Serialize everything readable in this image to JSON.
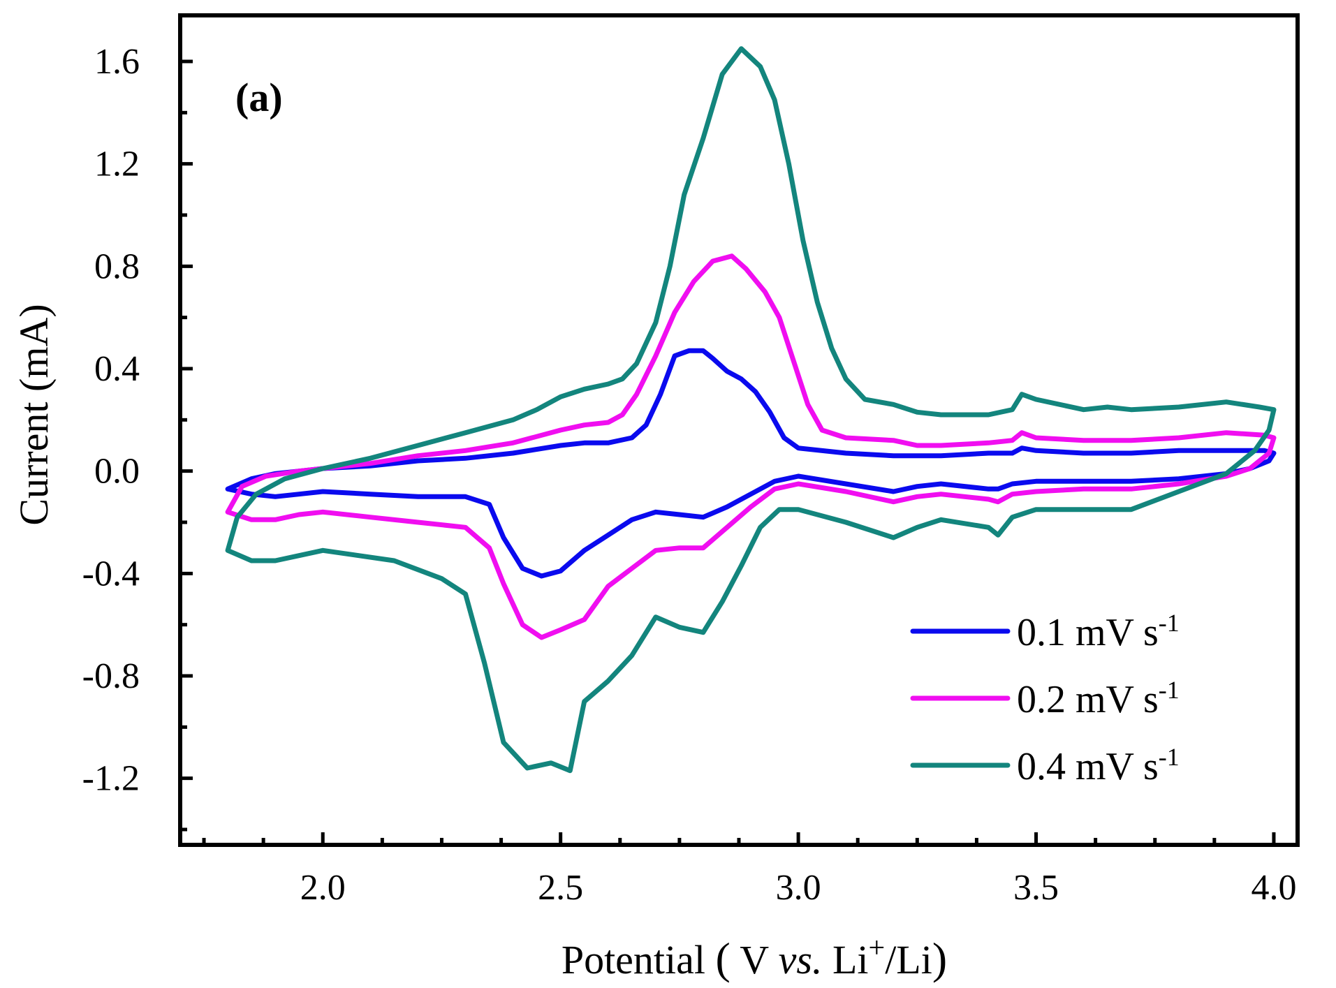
{
  "chart_data": {
    "type": "line",
    "panel_label": "(a)",
    "xlabel": {
      "main": "Potential",
      "open": "(",
      "v": "V",
      "vs": "vs.",
      "li": "Li",
      "sup": "+",
      "rest": "/Li",
      "close": ")"
    },
    "ylabel": "Current (mA)",
    "xlim": [
      1.7,
      4.05
    ],
    "ylim": [
      -1.46,
      1.78
    ],
    "xticks": [
      2.0,
      2.5,
      3.0,
      3.5,
      4.0
    ],
    "xtick_labels": [
      "2.0",
      "2.5",
      "3.0",
      "3.5",
      "4.0"
    ],
    "yticks": [
      -1.2,
      -0.8,
      -0.4,
      0.0,
      0.4,
      0.8,
      1.2,
      1.6
    ],
    "ytick_labels": [
      "-1.2",
      "-0.8",
      "-0.4",
      "0.0",
      "0.4",
      "0.8",
      "1.2",
      "1.6"
    ],
    "grid": false,
    "legend_position": "bottom-right",
    "series": [
      {
        "name": "0.1 mV s",
        "name_sup": "-1",
        "color": "#0a0aee",
        "points": [
          [
            1.8,
            -0.07
          ],
          [
            1.85,
            -0.03
          ],
          [
            1.9,
            -0.01
          ],
          [
            1.95,
            0
          ],
          [
            2.0,
            0.01
          ],
          [
            2.1,
            0.02
          ],
          [
            2.2,
            0.04
          ],
          [
            2.3,
            0.05
          ],
          [
            2.4,
            0.07
          ],
          [
            2.5,
            0.1
          ],
          [
            2.55,
            0.11
          ],
          [
            2.6,
            0.11
          ],
          [
            2.65,
            0.13
          ],
          [
            2.68,
            0.18
          ],
          [
            2.71,
            0.3
          ],
          [
            2.74,
            0.45
          ],
          [
            2.77,
            0.47
          ],
          [
            2.8,
            0.47
          ],
          [
            2.82,
            0.44
          ],
          [
            2.85,
            0.39
          ],
          [
            2.88,
            0.36
          ],
          [
            2.91,
            0.31
          ],
          [
            2.94,
            0.23
          ],
          [
            2.97,
            0.13
          ],
          [
            3.0,
            0.09
          ],
          [
            3.1,
            0.07
          ],
          [
            3.2,
            0.06
          ],
          [
            3.3,
            0.06
          ],
          [
            3.4,
            0.07
          ],
          [
            3.45,
            0.07
          ],
          [
            3.47,
            0.09
          ],
          [
            3.5,
            0.08
          ],
          [
            3.6,
            0.07
          ],
          [
            3.7,
            0.07
          ],
          [
            3.8,
            0.08
          ],
          [
            3.9,
            0.08
          ],
          [
            3.98,
            0.08
          ],
          [
            4.0,
            0.07
          ],
          [
            3.99,
            0.04
          ],
          [
            3.95,
            0.01
          ],
          [
            3.9,
            -0.01
          ],
          [
            3.8,
            -0.03
          ],
          [
            3.7,
            -0.04
          ],
          [
            3.6,
            -0.04
          ],
          [
            3.5,
            -0.04
          ],
          [
            3.45,
            -0.05
          ],
          [
            3.42,
            -0.07
          ],
          [
            3.4,
            -0.07
          ],
          [
            3.3,
            -0.05
          ],
          [
            3.25,
            -0.06
          ],
          [
            3.2,
            -0.08
          ],
          [
            3.1,
            -0.05
          ],
          [
            3.0,
            -0.02
          ],
          [
            2.95,
            -0.04
          ],
          [
            2.9,
            -0.09
          ],
          [
            2.85,
            -0.14
          ],
          [
            2.8,
            -0.18
          ],
          [
            2.75,
            -0.17
          ],
          [
            2.7,
            -0.16
          ],
          [
            2.65,
            -0.19
          ],
          [
            2.6,
            -0.25
          ],
          [
            2.55,
            -0.31
          ],
          [
            2.5,
            -0.39
          ],
          [
            2.46,
            -0.41
          ],
          [
            2.42,
            -0.38
          ],
          [
            2.38,
            -0.26
          ],
          [
            2.35,
            -0.13
          ],
          [
            2.3,
            -0.1
          ],
          [
            2.2,
            -0.1
          ],
          [
            2.1,
            -0.09
          ],
          [
            2.0,
            -0.08
          ],
          [
            1.95,
            -0.09
          ],
          [
            1.9,
            -0.1
          ],
          [
            1.85,
            -0.09
          ],
          [
            1.8,
            -0.07
          ]
        ]
      },
      {
        "name": "0.2 mV s",
        "name_sup": "-1",
        "color": "#f00ef0",
        "points": [
          [
            1.8,
            -0.16
          ],
          [
            1.83,
            -0.06
          ],
          [
            1.88,
            -0.02
          ],
          [
            1.95,
            0
          ],
          [
            2.0,
            0.01
          ],
          [
            2.1,
            0.03
          ],
          [
            2.2,
            0.06
          ],
          [
            2.3,
            0.08
          ],
          [
            2.4,
            0.11
          ],
          [
            2.5,
            0.16
          ],
          [
            2.55,
            0.18
          ],
          [
            2.6,
            0.19
          ],
          [
            2.63,
            0.22
          ],
          [
            2.66,
            0.3
          ],
          [
            2.7,
            0.45
          ],
          [
            2.74,
            0.62
          ],
          [
            2.78,
            0.74
          ],
          [
            2.82,
            0.82
          ],
          [
            2.86,
            0.84
          ],
          [
            2.89,
            0.79
          ],
          [
            2.93,
            0.7
          ],
          [
            2.96,
            0.6
          ],
          [
            2.99,
            0.43
          ],
          [
            3.02,
            0.26
          ],
          [
            3.05,
            0.16
          ],
          [
            3.1,
            0.13
          ],
          [
            3.2,
            0.12
          ],
          [
            3.25,
            0.1
          ],
          [
            3.3,
            0.1
          ],
          [
            3.4,
            0.11
          ],
          [
            3.45,
            0.12
          ],
          [
            3.47,
            0.15
          ],
          [
            3.5,
            0.13
          ],
          [
            3.6,
            0.12
          ],
          [
            3.7,
            0.12
          ],
          [
            3.8,
            0.13
          ],
          [
            3.9,
            0.15
          ],
          [
            3.98,
            0.14
          ],
          [
            4.0,
            0.13
          ],
          [
            3.99,
            0.07
          ],
          [
            3.95,
            0.01
          ],
          [
            3.9,
            -0.02
          ],
          [
            3.8,
            -0.05
          ],
          [
            3.7,
            -0.07
          ],
          [
            3.6,
            -0.07
          ],
          [
            3.5,
            -0.08
          ],
          [
            3.45,
            -0.09
          ],
          [
            3.42,
            -0.12
          ],
          [
            3.4,
            -0.11
          ],
          [
            3.3,
            -0.09
          ],
          [
            3.25,
            -0.1
          ],
          [
            3.2,
            -0.12
          ],
          [
            3.1,
            -0.08
          ],
          [
            3.0,
            -0.05
          ],
          [
            2.95,
            -0.07
          ],
          [
            2.9,
            -0.14
          ],
          [
            2.85,
            -0.22
          ],
          [
            2.8,
            -0.3
          ],
          [
            2.75,
            -0.3
          ],
          [
            2.7,
            -0.31
          ],
          [
            2.65,
            -0.38
          ],
          [
            2.6,
            -0.45
          ],
          [
            2.55,
            -0.58
          ],
          [
            2.5,
            -0.62
          ],
          [
            2.46,
            -0.65
          ],
          [
            2.42,
            -0.6
          ],
          [
            2.38,
            -0.44
          ],
          [
            2.35,
            -0.3
          ],
          [
            2.3,
            -0.22
          ],
          [
            2.2,
            -0.2
          ],
          [
            2.1,
            -0.18
          ],
          [
            2.0,
            -0.16
          ],
          [
            1.95,
            -0.17
          ],
          [
            1.9,
            -0.19
          ],
          [
            1.85,
            -0.19
          ],
          [
            1.8,
            -0.16
          ]
        ]
      },
      {
        "name": "0.4 mV s",
        "name_sup": "-1",
        "color": "#13857d",
        "points": [
          [
            1.8,
            -0.31
          ],
          [
            1.82,
            -0.18
          ],
          [
            1.86,
            -0.09
          ],
          [
            1.92,
            -0.03
          ],
          [
            2.0,
            0.01
          ],
          [
            2.1,
            0.05
          ],
          [
            2.2,
            0.1
          ],
          [
            2.3,
            0.15
          ],
          [
            2.4,
            0.2
          ],
          [
            2.45,
            0.24
          ],
          [
            2.5,
            0.29
          ],
          [
            2.55,
            0.32
          ],
          [
            2.6,
            0.34
          ],
          [
            2.63,
            0.36
          ],
          [
            2.66,
            0.42
          ],
          [
            2.7,
            0.58
          ],
          [
            2.73,
            0.8
          ],
          [
            2.76,
            1.08
          ],
          [
            2.8,
            1.3
          ],
          [
            2.84,
            1.55
          ],
          [
            2.88,
            1.65
          ],
          [
            2.92,
            1.58
          ],
          [
            2.95,
            1.45
          ],
          [
            2.98,
            1.2
          ],
          [
            3.01,
            0.9
          ],
          [
            3.04,
            0.66
          ],
          [
            3.07,
            0.48
          ],
          [
            3.1,
            0.36
          ],
          [
            3.14,
            0.28
          ],
          [
            3.2,
            0.26
          ],
          [
            3.25,
            0.23
          ],
          [
            3.3,
            0.22
          ],
          [
            3.4,
            0.22
          ],
          [
            3.45,
            0.24
          ],
          [
            3.47,
            0.3
          ],
          [
            3.5,
            0.28
          ],
          [
            3.6,
            0.24
          ],
          [
            3.65,
            0.25
          ],
          [
            3.7,
            0.24
          ],
          [
            3.8,
            0.25
          ],
          [
            3.9,
            0.27
          ],
          [
            3.97,
            0.25
          ],
          [
            4.0,
            0.24
          ],
          [
            3.99,
            0.16
          ],
          [
            3.96,
            0.08
          ],
          [
            3.9,
            -0.01
          ],
          [
            3.8,
            -0.08
          ],
          [
            3.7,
            -0.15
          ],
          [
            3.6,
            -0.15
          ],
          [
            3.5,
            -0.15
          ],
          [
            3.45,
            -0.18
          ],
          [
            3.42,
            -0.25
          ],
          [
            3.4,
            -0.22
          ],
          [
            3.3,
            -0.19
          ],
          [
            3.25,
            -0.22
          ],
          [
            3.2,
            -0.26
          ],
          [
            3.1,
            -0.2
          ],
          [
            3.0,
            -0.15
          ],
          [
            2.96,
            -0.15
          ],
          [
            2.92,
            -0.22
          ],
          [
            2.88,
            -0.37
          ],
          [
            2.84,
            -0.51
          ],
          [
            2.8,
            -0.63
          ],
          [
            2.75,
            -0.61
          ],
          [
            2.7,
            -0.57
          ],
          [
            2.65,
            -0.72
          ],
          [
            2.6,
            -0.82
          ],
          [
            2.55,
            -0.9
          ],
          [
            2.52,
            -1.17
          ],
          [
            2.48,
            -1.14
          ],
          [
            2.43,
            -1.16
          ],
          [
            2.38,
            -1.06
          ],
          [
            2.34,
            -0.75
          ],
          [
            2.3,
            -0.48
          ],
          [
            2.25,
            -0.42
          ],
          [
            2.15,
            -0.35
          ],
          [
            2.0,
            -0.31
          ],
          [
            1.95,
            -0.33
          ],
          [
            1.9,
            -0.35
          ],
          [
            1.85,
            -0.35
          ],
          [
            1.8,
            -0.31
          ]
        ]
      }
    ]
  }
}
